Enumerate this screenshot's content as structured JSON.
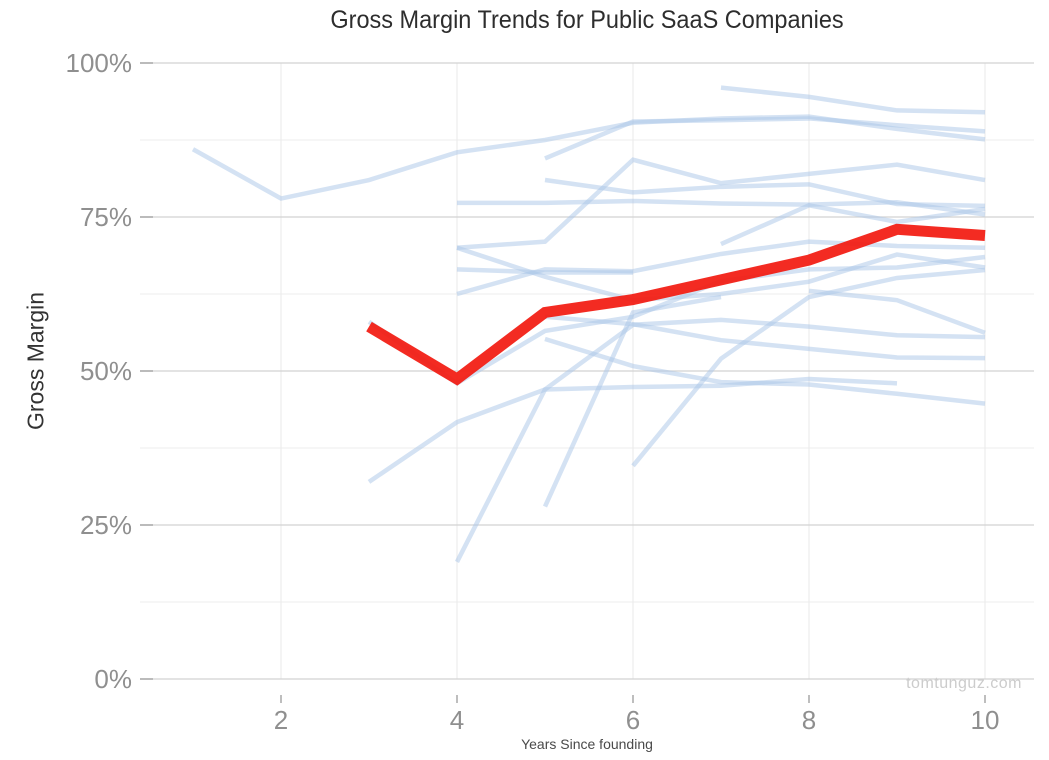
{
  "watermark": "tomtunguz.com",
  "colors": {
    "background": "#ffffff",
    "median_line": "#f2190f",
    "company_line": "#a9c6e8",
    "major_gridline": "#d2d2d2",
    "minor_gridline": "#ededed",
    "vertical_gridline": "#ececec",
    "tick_mark": "#a8a8a8",
    "tick_label": "#8f8f8f",
    "title_text": "#2d2d2d",
    "watermark_text": "#cccccc"
  },
  "chart_data": {
    "type": "line",
    "title": "Gross Margin Trends for Public SaaS Companies",
    "xlabel": "Years Since founding",
    "ylabel": "Gross Margin",
    "xlim": [
      0.4,
      10.6
    ],
    "ylim": [
      0,
      100
    ],
    "grid": "horizontal major+minor, vertical at even years, no legend",
    "x_ticks": [
      {
        "value": 2,
        "label": "2"
      },
      {
        "value": 4,
        "label": "4"
      },
      {
        "value": 6,
        "label": "6"
      },
      {
        "value": 8,
        "label": "8"
      },
      {
        "value": 10,
        "label": "10"
      }
    ],
    "y_ticks": [
      {
        "value": 0,
        "label": "0%"
      },
      {
        "value": 25,
        "label": "25%"
      },
      {
        "value": 50,
        "label": "50%"
      },
      {
        "value": 75,
        "label": "75%"
      },
      {
        "value": 100,
        "label": "100%"
      }
    ],
    "y_minor_ticks": [
      12.5,
      37.5,
      62.5,
      87.5
    ],
    "highlight_series": {
      "name": "median-gross-margin",
      "units": "percent",
      "points": [
        [
          3,
          57.2
        ],
        [
          4,
          48.7
        ],
        [
          5,
          59.5
        ],
        [
          6,
          61.6
        ],
        [
          7,
          64.8
        ],
        [
          8,
          68
        ],
        [
          9,
          73
        ],
        [
          10,
          72
        ]
      ]
    },
    "background_series": [
      {
        "points": [
          [
            1,
            86
          ],
          [
            2,
            78
          ],
          [
            3,
            81
          ],
          [
            4,
            85.5
          ],
          [
            5,
            87.5
          ],
          [
            6,
            90.3
          ],
          [
            7,
            91
          ],
          [
            8,
            91.3
          ],
          [
            9,
            89.3
          ],
          [
            10,
            87.6
          ]
        ]
      },
      {
        "points": [
          [
            7,
            96
          ],
          [
            8,
            94.5
          ],
          [
            9,
            92.3
          ],
          [
            10,
            92
          ]
        ]
      },
      {
        "points": [
          [
            5,
            84.5
          ],
          [
            6,
            90.5
          ],
          [
            7,
            90.7
          ],
          [
            8,
            91
          ],
          [
            9,
            89.9
          ],
          [
            10,
            88.9
          ]
        ]
      },
      {
        "points": [
          [
            4,
            77.3
          ],
          [
            5,
            77.3
          ],
          [
            6,
            77.6
          ],
          [
            7,
            77.2
          ],
          [
            8,
            77
          ],
          [
            9,
            77.4
          ],
          [
            10,
            75.4
          ]
        ]
      },
      {
        "points": [
          [
            5,
            81
          ],
          [
            6,
            79
          ],
          [
            7,
            79.9
          ],
          [
            8,
            80.3
          ],
          [
            9,
            77.1
          ],
          [
            10,
            76.8
          ]
        ]
      },
      {
        "points": [
          [
            4,
            70
          ],
          [
            5,
            71
          ],
          [
            6,
            84.3
          ],
          [
            7,
            80.5
          ],
          [
            8,
            82
          ],
          [
            9,
            83.5
          ],
          [
            10,
            81
          ]
        ]
      },
      {
        "points": [
          [
            4,
            70
          ],
          [
            5,
            65.3
          ],
          [
            6,
            61.5
          ],
          [
            7,
            62.5
          ],
          [
            8,
            64.5
          ],
          [
            9,
            68.9
          ],
          [
            10,
            66.8
          ]
        ]
      },
      {
        "points": [
          [
            4,
            62.5
          ],
          [
            5,
            66.5
          ],
          [
            6,
            66.2
          ],
          [
            7,
            69
          ],
          [
            8,
            71
          ],
          [
            9,
            70.3
          ],
          [
            10,
            70
          ]
        ]
      },
      {
        "points": [
          [
            3,
            58
          ],
          [
            4,
            48
          ],
          [
            5,
            56.5
          ],
          [
            6,
            58.8
          ],
          [
            7,
            64.6
          ],
          [
            8,
            66.5
          ],
          [
            9,
            66.8
          ],
          [
            10,
            68.5
          ]
        ]
      },
      {
        "points": [
          [
            5,
            58.8
          ],
          [
            6,
            57.6
          ],
          [
            7,
            55
          ],
          [
            8,
            53.6
          ],
          [
            9,
            52.2
          ],
          [
            10,
            52.1
          ]
        ]
      },
      {
        "points": [
          [
            3,
            32
          ],
          [
            4,
            41.7
          ],
          [
            5,
            47
          ],
          [
            6,
            47.4
          ],
          [
            7,
            47.6
          ],
          [
            8,
            48.7
          ],
          [
            9,
            48
          ]
        ]
      },
      {
        "points": [
          [
            4,
            19
          ],
          [
            5,
            47
          ],
          [
            6,
            57.5
          ],
          [
            7,
            58.3
          ],
          [
            8,
            57.2
          ],
          [
            9,
            55.8
          ],
          [
            10,
            55.5
          ]
        ]
      },
      {
        "points": [
          [
            5,
            28
          ],
          [
            6,
            59.5
          ],
          [
            7,
            62
          ]
        ]
      },
      {
        "points": [
          [
            6,
            34.6
          ],
          [
            7,
            52
          ],
          [
            8,
            62
          ],
          [
            9,
            65.1
          ],
          [
            10,
            66.4
          ]
        ]
      },
      {
        "points": [
          [
            5,
            55.2
          ],
          [
            6,
            50.8
          ],
          [
            7,
            48.2
          ],
          [
            8,
            47.8
          ],
          [
            9,
            46.3
          ],
          [
            10,
            44.7
          ]
        ]
      },
      {
        "points": [
          [
            4,
            66.5
          ],
          [
            5,
            66
          ],
          [
            6,
            66
          ]
        ]
      },
      {
        "points": [
          [
            7,
            70.6
          ],
          [
            8,
            76.9
          ],
          [
            9,
            74.2
          ],
          [
            10,
            76.3
          ]
        ]
      },
      {
        "points": [
          [
            8,
            63
          ],
          [
            9,
            61.5
          ],
          [
            10,
            56.2
          ]
        ]
      }
    ]
  }
}
